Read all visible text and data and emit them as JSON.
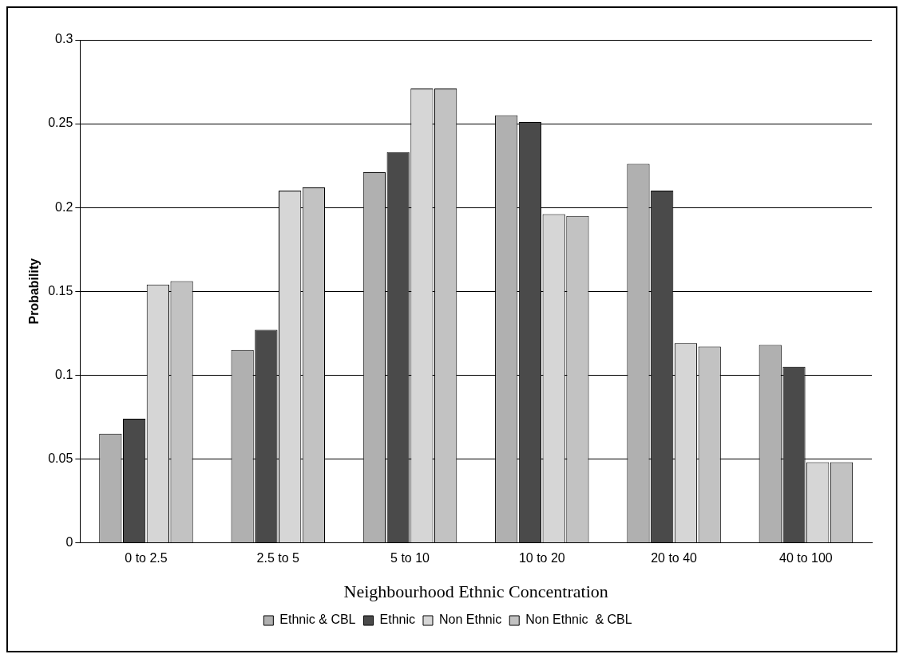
{
  "chart_data": {
    "type": "bar",
    "xlabel": "Neighbourhood Ethnic Concentration",
    "ylabel": "Probability",
    "categories": [
      "0 to 2.5",
      "2.5 to 5",
      "5 to 10",
      "10 to 20",
      "20 to 40",
      "40 to 100"
    ],
    "series": [
      {
        "name": "Ethnic & CBL",
        "color": "#b0b0b0",
        "values": [
          0.065,
          0.115,
          0.221,
          0.255,
          0.226,
          0.118
        ]
      },
      {
        "name": "Ethnic",
        "color": "#4a4a4a",
        "values": [
          0.074,
          0.127,
          0.233,
          0.251,
          0.21,
          0.105
        ]
      },
      {
        "name": "Non Ethnic",
        "color": "#d6d6d6",
        "values": [
          0.154,
          0.21,
          0.271,
          0.196,
          0.119,
          0.048
        ]
      },
      {
        "name": "Non Ethnic  & CBL",
        "color": "#c2c2c2",
        "values": [
          0.156,
          0.212,
          0.271,
          0.195,
          0.117,
          0.048
        ]
      }
    ],
    "ylim": [
      0,
      0.3
    ],
    "yticks": [
      0,
      0.05,
      0.1,
      0.15,
      0.2,
      0.25,
      0.3
    ],
    "grid": "y",
    "legend": "bottom"
  }
}
